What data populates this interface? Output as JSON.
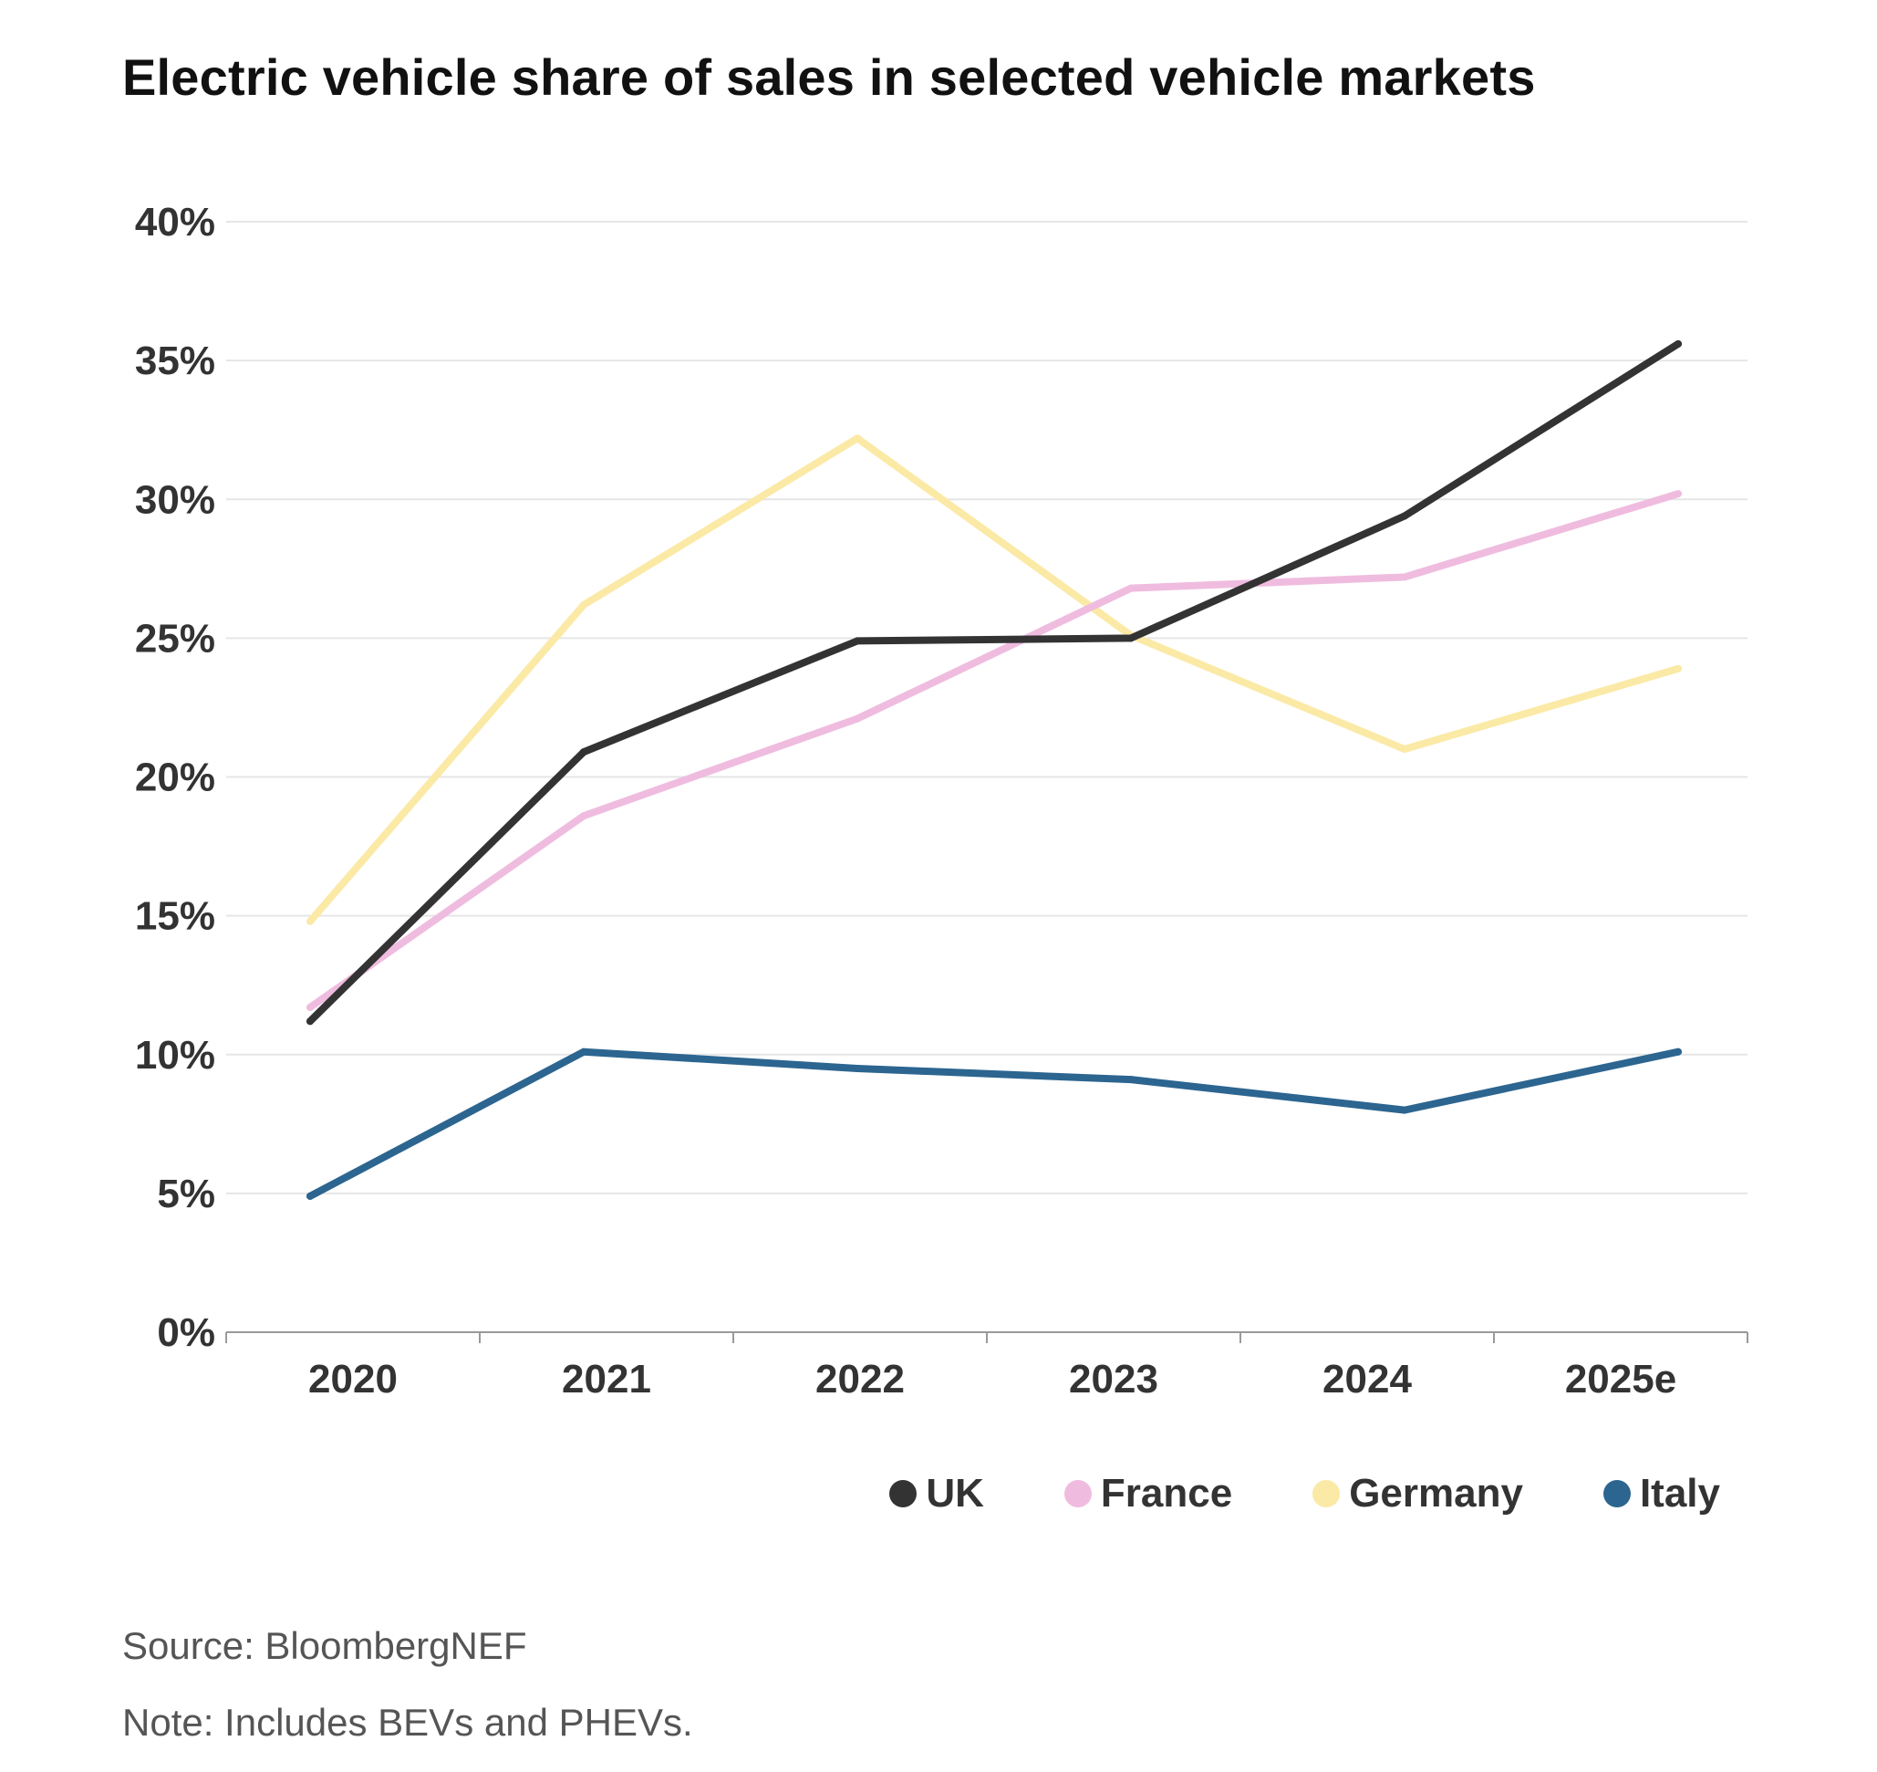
{
  "chart_data": {
    "type": "line",
    "title": "Electric vehicle share of sales in selected vehicle markets",
    "xlabel": "",
    "ylabel": "",
    "categories": [
      "2020",
      "2021",
      "2022",
      "2023",
      "2024",
      "2025e"
    ],
    "ylim": [
      0,
      40
    ],
    "yticks": [
      "0%",
      "5%",
      "10%",
      "15%",
      "20%",
      "25%",
      "30%",
      "35%",
      "40%"
    ],
    "grid": true,
    "legend_position": "bottom-right",
    "series": [
      {
        "name": "UK",
        "color": "#333333",
        "values": [
          11.2,
          20.9,
          24.9,
          25.0,
          29.4,
          35.6
        ]
      },
      {
        "name": "France",
        "color": "#efbcdf",
        "values": [
          11.7,
          18.6,
          22.1,
          26.8,
          27.2,
          30.2
        ]
      },
      {
        "name": "Germany",
        "color": "#fbe9a6",
        "values": [
          14.8,
          26.2,
          32.2,
          25.1,
          21.0,
          23.9
        ]
      },
      {
        "name": "Italy",
        "color": "#2c6590",
        "values": [
          4.9,
          10.1,
          9.5,
          9.1,
          8.0,
          10.1
        ]
      }
    ]
  },
  "footer": {
    "source": "Source: BloombergNEF",
    "note": "Note: Includes BEVs and PHEVs."
  }
}
